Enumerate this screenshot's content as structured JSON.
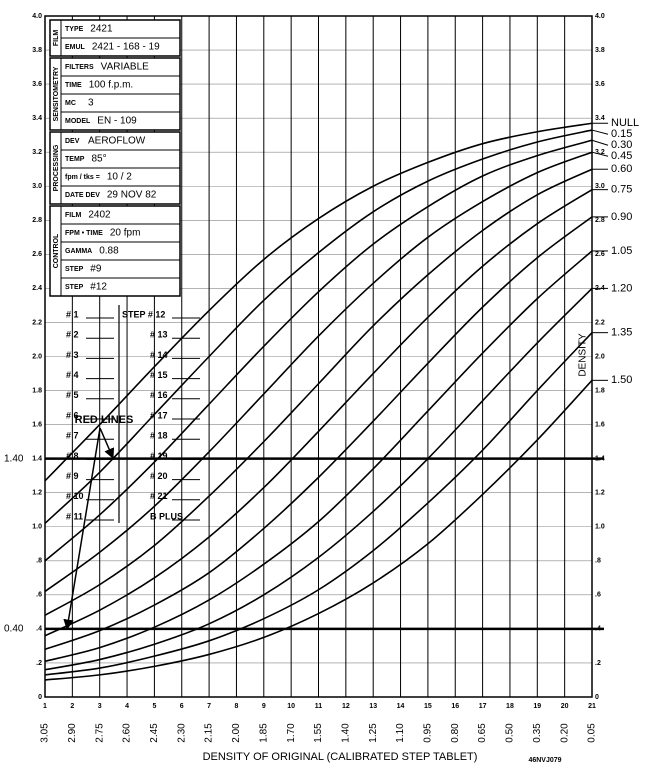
{
  "chart_data": {
    "type": "line",
    "xlabel": "DENSITY OF ORIGINAL (CALIBRATED STEP TABLET)",
    "ylabel": "DENSITY",
    "code": "46NVJ079",
    "x": [
      1,
      3,
      5,
      7,
      9,
      11,
      13,
      15,
      17,
      19,
      21
    ],
    "xlim": [
      1,
      21
    ],
    "xticks": [
      1,
      2,
      3,
      4,
      5,
      6,
      7,
      8,
      9,
      10,
      11,
      12,
      13,
      14,
      15,
      16,
      17,
      18,
      19,
      20,
      21
    ],
    "x_density_labels": [
      "3.05",
      "2.90",
      "2.75",
      "2.60",
      "2.45",
      "2.30",
      "2.15",
      "2.00",
      "1.85",
      "1.70",
      "1.55",
      "1.40",
      "1.25",
      "1.10",
      "0.95",
      "0.80",
      "0.65",
      "0.50",
      "0.35",
      "0.20",
      "0.05"
    ],
    "ylim": [
      0,
      4
    ],
    "yticks": [
      0,
      {
        "value": 0.2,
        "label": ".2"
      },
      {
        "value": 0.4,
        "label": ".4"
      },
      {
        "value": 0.6,
        "label": ".6"
      },
      {
        "value": 0.8,
        "label": ".8"
      },
      {
        "value": 1,
        "label": "1.0"
      },
      1.2,
      1.4,
      1.6,
      1.8,
      {
        "value": 2,
        "label": "2.0"
      },
      2.2,
      2.4,
      2.6,
      2.8,
      {
        "value": 3,
        "label": "3.0"
      },
      3.2,
      3.4,
      3.6,
      3.8,
      {
        "value": 4,
        "label": "4.0"
      }
    ],
    "grid": true,
    "ref_lines": [
      {
        "value": 1.4,
        "label": "1.40"
      },
      {
        "value": 0.4,
        "label": "0.40"
      }
    ],
    "series": [
      {
        "name": "NULL",
        "color": "#000000",
        "values": [
          1.27,
          1.6,
          1.94,
          2.27,
          2.57,
          2.81,
          3.0,
          3.14,
          3.25,
          3.32,
          3.37
        ]
      },
      {
        "name": "0.15",
        "color": "#000000",
        "values": [
          1.02,
          1.32,
          1.66,
          2.0,
          2.33,
          2.61,
          2.85,
          3.03,
          3.16,
          3.26,
          3.33
        ]
      },
      {
        "name": "0.30",
        "color": "#000000",
        "values": [
          0.8,
          1.07,
          1.38,
          1.72,
          2.06,
          2.38,
          2.66,
          2.88,
          3.06,
          3.18,
          3.27
        ]
      },
      {
        "name": "0.45",
        "color": "#000000",
        "values": [
          0.62,
          0.85,
          1.12,
          1.44,
          1.78,
          2.12,
          2.43,
          2.7,
          2.91,
          3.08,
          3.2
        ]
      },
      {
        "name": "0.60",
        "color": "#000000",
        "values": [
          0.48,
          0.66,
          0.89,
          1.18,
          1.5,
          1.84,
          2.18,
          2.48,
          2.74,
          2.95,
          3.1
        ]
      },
      {
        "name": "0.75",
        "color": "#000000",
        "values": [
          0.36,
          0.51,
          0.7,
          0.94,
          1.23,
          1.56,
          1.9,
          2.23,
          2.53,
          2.78,
          2.98
        ]
      },
      {
        "name": "0.90",
        "color": "#000000",
        "values": [
          0.28,
          0.39,
          0.54,
          0.73,
          0.99,
          1.29,
          1.62,
          1.96,
          2.29,
          2.58,
          2.82
        ]
      },
      {
        "name": "1.05",
        "color": "#000000",
        "values": [
          0.21,
          0.29,
          0.41,
          0.57,
          0.78,
          1.03,
          1.34,
          1.68,
          2.02,
          2.34,
          2.62
        ]
      },
      {
        "name": "1.20",
        "color": "#000000",
        "values": [
          0.16,
          0.22,
          0.31,
          0.43,
          0.6,
          0.82,
          1.09,
          1.4,
          1.74,
          2.08,
          2.4
        ]
      },
      {
        "name": "1.35",
        "color": "#000000",
        "values": [
          0.13,
          0.17,
          0.24,
          0.33,
          0.46,
          0.63,
          0.86,
          1.14,
          1.45,
          1.8,
          2.14
        ]
      },
      {
        "name": "1.50",
        "color": "#000000",
        "values": [
          0.1,
          0.13,
          0.18,
          0.25,
          0.35,
          0.49,
          0.67,
          0.9,
          1.19,
          1.51,
          1.86
        ]
      }
    ],
    "info_panel": [
      {
        "section": "FILM",
        "rows": [
          [
            "TYPE",
            "2421"
          ],
          [
            "EMUL",
            "2421 - 168 - 19"
          ]
        ]
      },
      {
        "section": "SENSITOMETRY",
        "rows": [
          [
            "FILTERS",
            "VARIABLE"
          ],
          [
            "TIME",
            "100 f.p.m."
          ],
          [
            "MC",
            "3"
          ],
          [
            "MODEL",
            "EN - 109"
          ]
        ]
      },
      {
        "section": "PROCESSING",
        "rows": [
          [
            "DEV",
            "AEROFLOW"
          ],
          [
            "TEMP",
            "85°"
          ],
          [
            "fpm / tks =",
            "10 / 2"
          ],
          [
            "DATE DEV",
            "29 NOV 82"
          ]
        ]
      },
      {
        "section": "CONTROL",
        "rows": [
          [
            "FILM",
            "2402"
          ],
          [
            "FPM • TIME",
            "20 fpm"
          ],
          [
            "GAMMA",
            "0.88"
          ],
          [
            "STEP",
            "#9"
          ],
          [
            "STEP",
            "#12"
          ]
        ]
      }
    ],
    "step_list_left": [
      "# 1",
      "# 2",
      "# 3",
      "# 4",
      "# 5",
      "# 6",
      "# 7",
      "# 8",
      "# 9",
      "# 10",
      "# 11"
    ],
    "step_list_right": [
      "STEP # 12",
      "# 13",
      "# 14",
      "# 15",
      "# 16",
      "# 17",
      "# 18",
      "# 19",
      "# 20",
      "# 21",
      "B PLUS"
    ],
    "red_lines_label": "RED LINES"
  }
}
